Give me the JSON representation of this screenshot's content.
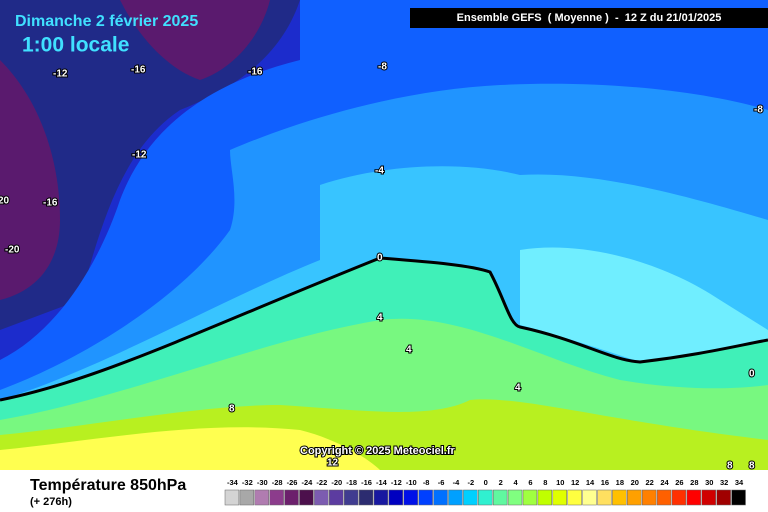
{
  "header": {
    "date": "Dimanche 2 février 2025",
    "local_time": "1:00 locale",
    "model": "Ensemble GEFS  ( Moyenne )  -  12 Z du 21/01/2025"
  },
  "copyright": "Copyright © 2025 Meteociel.fr",
  "footer": {
    "title": "Température 850hPa",
    "lead_time": "(+ 276h)"
  },
  "contour_labels": [
    -12,
    -16,
    -16,
    -8,
    -8,
    -12,
    20,
    -16,
    -20,
    -4,
    0,
    4,
    4,
    8,
    4,
    12,
    0,
    8,
    8
  ],
  "legend": {
    "values": [
      -34,
      -32,
      -30,
      -28,
      -26,
      -24,
      -22,
      -20,
      -18,
      -16,
      -14,
      -12,
      -10,
      -8,
      -6,
      -4,
      -2,
      0,
      2,
      4,
      6,
      8,
      10,
      12,
      14,
      16,
      18,
      20,
      22,
      24,
      26,
      28,
      30,
      32,
      34
    ],
    "colors": [
      "#d4d4d4",
      "#a8a8a8",
      "#b07cb0",
      "#8c3c8c",
      "#6c206c",
      "#4c104c",
      "#7c5cb0",
      "#5c3ca0",
      "#403c90",
      "#2c2c70",
      "#1818a0",
      "#0000c0",
      "#0010e8",
      "#0040ff",
      "#0070ff",
      "#00a0ff",
      "#00d0ff",
      "#30f0d0",
      "#60f8a0",
      "#80ff80",
      "#a0ff40",
      "#c0ff00",
      "#e0ff00",
      "#ffff40",
      "#ffff90",
      "#ffe060",
      "#ffc000",
      "#ffa000",
      "#ff8000",
      "#ff6000",
      "#ff3000",
      "#ff0000",
      "#d00000",
      "#a00000",
      "#000000"
    ]
  }
}
